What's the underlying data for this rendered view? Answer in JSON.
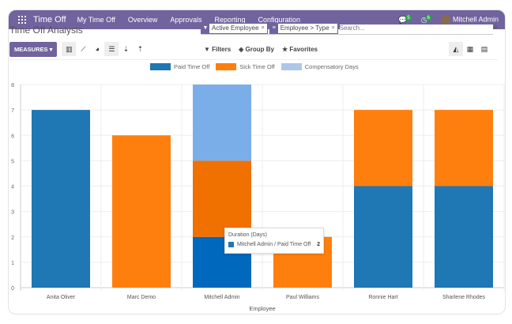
{
  "nav": {
    "app": "Time Off",
    "menu": [
      "My Time Off",
      "Overview",
      "Approvals",
      "Reporting",
      "Configuration"
    ],
    "messages_count": "5",
    "activities_count": "6",
    "user": "Mitchell Admin"
  },
  "page": {
    "title": "Time Off Analysis"
  },
  "search": {
    "facets": [
      {
        "icon": "filter-icon",
        "label": "Active Employee"
      },
      {
        "icon": "group-by-icon",
        "label": "Employee > Type"
      }
    ],
    "placeholder": "Search..."
  },
  "toolbar": {
    "measures": "MEASURES",
    "filters": "Filters",
    "group_by": "Group By",
    "favorites": "Favorites"
  },
  "tooltip": {
    "title": "Duration (Days)",
    "label": "Mitchell Admin / Paid Time Off",
    "value": "2"
  },
  "colors": {
    "paid": "#1f77b4",
    "sick": "#ff7f0e",
    "comp": "#aec7e8",
    "brand": "#71639e"
  },
  "chart_data": {
    "type": "bar",
    "stacked": true,
    "categories": [
      "Anita Oliver",
      "Marc Demo",
      "Mitchell Admin",
      "Paul Williams",
      "Ronnie Hart",
      "Sharlene Rhodes"
    ],
    "series": [
      {
        "name": "Paid Time Off",
        "values": [
          7,
          0,
          2,
          0,
          4,
          4
        ]
      },
      {
        "name": "Sick Time Off",
        "values": [
          0,
          6,
          3,
          2,
          3,
          3
        ]
      },
      {
        "name": "Compensatory Days",
        "values": [
          0,
          0,
          3,
          0,
          0,
          0
        ]
      }
    ],
    "xlabel": "Employee",
    "ylabel": "",
    "ylim": [
      0,
      8
    ],
    "yticks": [
      "0",
      "1",
      "2",
      "3",
      "4",
      "5",
      "6",
      "7",
      "8"
    ],
    "grid": true,
    "legend": "top"
  }
}
